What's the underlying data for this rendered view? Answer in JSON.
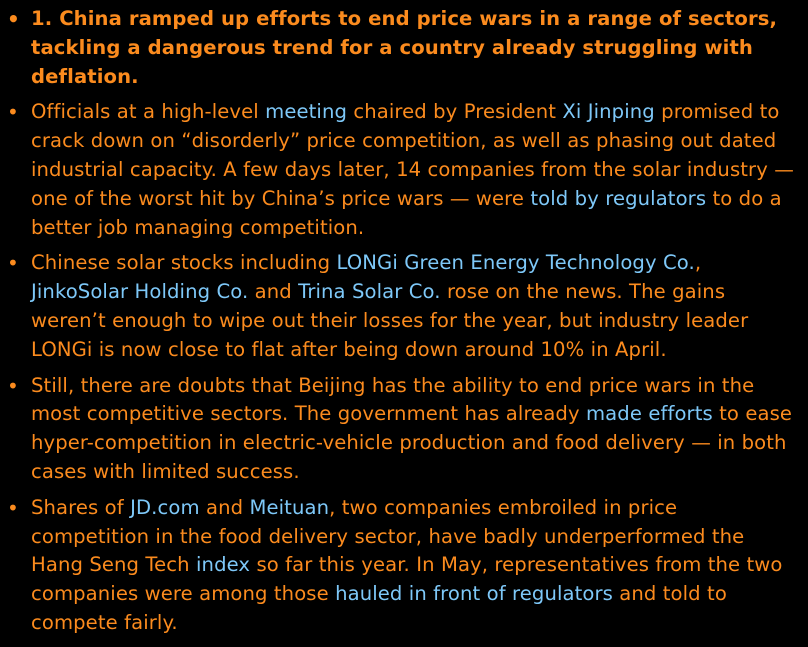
{
  "colors": {
    "background": "#000000",
    "text": "#fb8b1e",
    "link": "#7ec8f8"
  },
  "bullet_glyph": "•",
  "items": [
    {
      "headline": true,
      "parts": [
        {
          "text": "1. China ramped up efforts to end price wars in a range of sectors, tackling a dangerous trend for a country already struggling with deflation."
        }
      ]
    },
    {
      "headline": false,
      "parts": [
        {
          "text": "Officials at a high-level "
        },
        {
          "text": "meeting",
          "link": true
        },
        {
          "text": " chaired by President "
        },
        {
          "text": "Xi Jinping",
          "link": true
        },
        {
          "text": " promised to crack down on “disorderly” price competition, as well as phasing out dated industrial capacity. A few days later, 14 companies from the solar industry — one of the worst hit by China’s price wars — were "
        },
        {
          "text": "told by regulators",
          "link": true
        },
        {
          "text": " to do a better job managing competition."
        }
      ]
    },
    {
      "headline": false,
      "parts": [
        {
          "text": "Chinese solar stocks including "
        },
        {
          "text": "LONGi Green Energy Technology Co.",
          "link": true
        },
        {
          "text": ", "
        },
        {
          "text": "JinkoSolar Holding Co.",
          "link": true
        },
        {
          "text": " and "
        },
        {
          "text": "Trina Solar Co.",
          "link": true
        },
        {
          "text": " rose on the news. The gains weren’t enough to wipe out their losses for the year, but industry leader LONGi is now close to flat after being down around 10% in April."
        }
      ]
    },
    {
      "headline": false,
      "parts": [
        {
          "text": "Still, there are doubts that Beijing has the ability to end price wars in the most competitive sectors. The government has already "
        },
        {
          "text": "made efforts",
          "link": true
        },
        {
          "text": " to ease hyper-competition in electric-vehicle production and food delivery — in both cases with limited success."
        }
      ]
    },
    {
      "headline": false,
      "parts": [
        {
          "text": "Shares of "
        },
        {
          "text": "JD.com",
          "link": true
        },
        {
          "text": " and "
        },
        {
          "text": "Meituan",
          "link": true
        },
        {
          "text": ", two companies embroiled in price competition in the food delivery sector, have badly underperformed the Hang Seng Tech "
        },
        {
          "text": "index",
          "link": true
        },
        {
          "text": " so far this year. In May, representatives from the two companies were among those "
        },
        {
          "text": "hauled in front of regulators",
          "link": true
        },
        {
          "text": " and told to compete fairly."
        }
      ]
    }
  ]
}
